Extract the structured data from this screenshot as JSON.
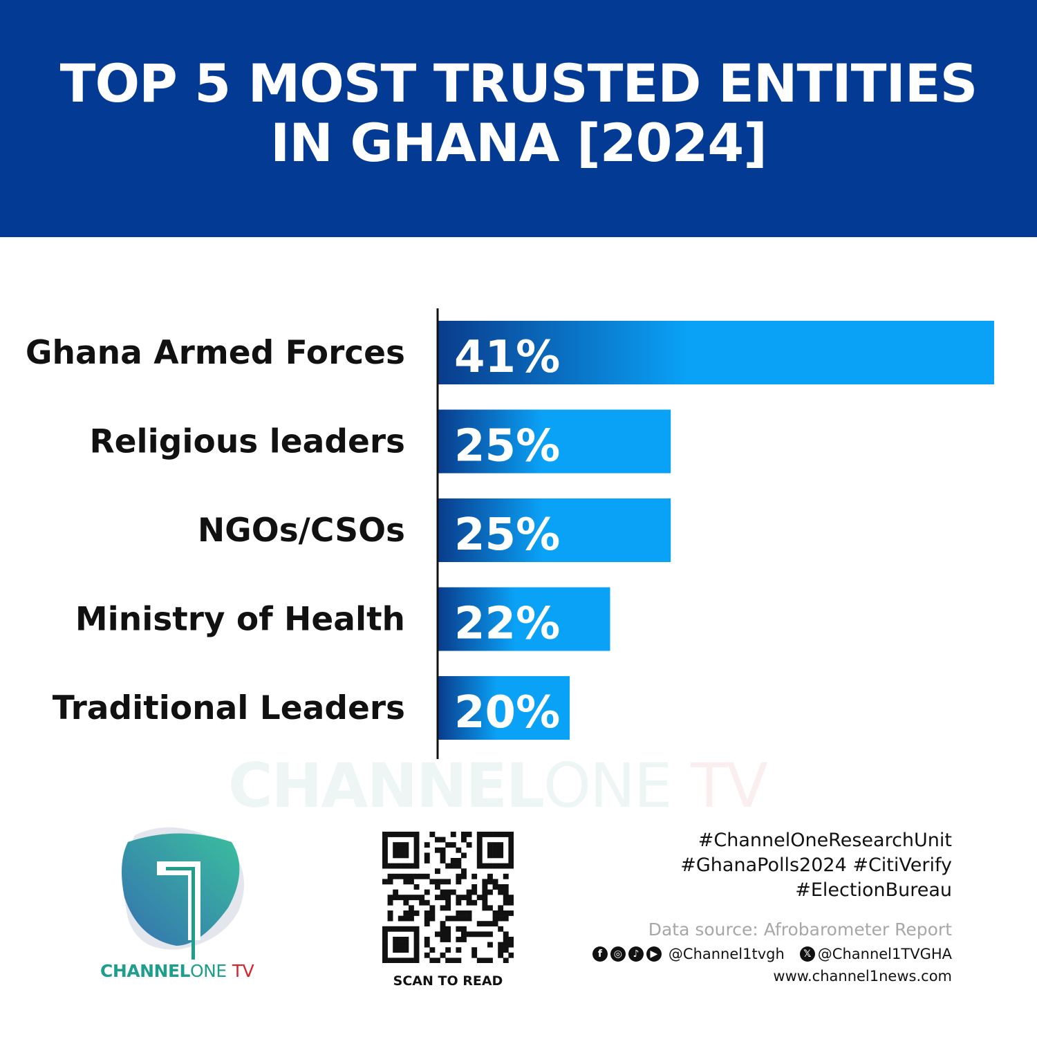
{
  "header": {
    "title_line1": "TOP 5 MOST TRUSTED ENTITIES",
    "title_line2": "IN GHANA [2024]"
  },
  "chart_data": {
    "type": "bar",
    "orientation": "horizontal",
    "title": "TOP 5 MOST TRUSTED ENTITIES IN GHANA [2024]",
    "categories": [
      "Ghana Armed Forces",
      "Religious leaders",
      "NGOs/CSOs",
      "Ministry of Health",
      "Traditional Leaders"
    ],
    "values": [
      41,
      25,
      25,
      22,
      20
    ],
    "data_labels": [
      "41%",
      "25%",
      "25%",
      "22%",
      "20%"
    ],
    "unit": "%",
    "xlim": [
      13.5,
      41
    ],
    "grid": false,
    "bar_colors": {
      "start": "#0a3c8c",
      "end": "#0aa2f7"
    }
  },
  "watermark": {
    "part1": "CHANNEL",
    "part2": "ONE",
    "part3": "TV"
  },
  "logo": {
    "part1": "CHANNEL",
    "part2": "ONE",
    "part3": "TV",
    "colors": {
      "teal": "#1f9e8d",
      "red": "#d3262c",
      "blue": "#3470b0"
    }
  },
  "qr": {
    "caption": "SCAN TO READ"
  },
  "footer": {
    "tags": [
      "#ChannelOneResearchUnit",
      "#GhanaPolls2024 #CitiVerify",
      "#ElectionBureau"
    ],
    "source": "Data source: Afrobarometer Report",
    "social_icons": [
      "facebook-icon",
      "instagram-icon",
      "tiktok-icon",
      "youtube-icon"
    ],
    "handle1": "@Channel1tvgh",
    "handle2": "@Channel1TVGHA",
    "website": "www.channel1news.com"
  }
}
